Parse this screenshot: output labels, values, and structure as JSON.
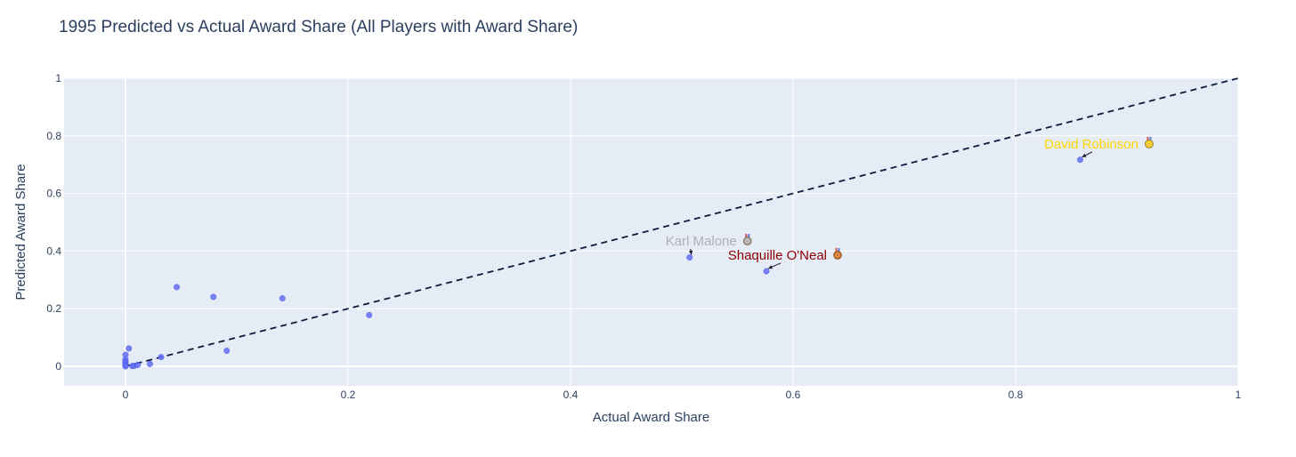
{
  "chart_data": {
    "type": "scatter",
    "title": "1995 Predicted vs Actual Award Share (All Players with Award Share)",
    "xlabel": "Actual Award Share",
    "ylabel": "Predicted Award Share",
    "xlim": [
      -0.056,
      1.0
    ],
    "ylim": [
      -0.065,
      1.0
    ],
    "x_ticks": [
      0,
      0.2,
      0.4,
      0.6,
      0.8,
      1
    ],
    "x_tick_labels": [
      "0",
      "0.2",
      "0.4",
      "0.6",
      "0.8",
      "1"
    ],
    "y_ticks": [
      0,
      0.2,
      0.4,
      0.6,
      0.8,
      1
    ],
    "y_tick_labels": [
      "0",
      "0.2",
      "0.4",
      "0.6",
      "0.8",
      "1"
    ],
    "grid": true,
    "reference_line": {
      "x": [
        0,
        1
      ],
      "y": [
        0,
        1
      ],
      "style": "dashed",
      "color": "#0d1b3e"
    },
    "series": [
      {
        "color": "#636efa",
        "x": [
          0.858,
          0.507,
          0.576,
          0.046,
          0.079,
          0.141,
          0.219,
          0.091,
          0.003,
          0.0,
          0.0,
          0.0,
          0.0,
          0.0,
          0.032,
          0.022,
          0.008,
          0.011,
          0.006,
          0.0
        ],
        "y": [
          0.717,
          0.378,
          0.33,
          0.275,
          0.241,
          0.236,
          0.178,
          0.054,
          0.062,
          0.04,
          0.024,
          0.016,
          0.01,
          0.003,
          0.032,
          0.008,
          0.002,
          0.005,
          0.001,
          0.0
        ]
      }
    ],
    "annotations": [
      {
        "text": "David Robinson",
        "color": "#ffd700",
        "medal": "gold",
        "medal_color": "#f5c518",
        "point_x": 0.858,
        "point_y": 0.717,
        "label_x": 0.92,
        "label_y": 0.772
      },
      {
        "text": "Karl Malone",
        "color": "#b0b0b0",
        "medal": "silver",
        "medal_color": "#a8a8a8",
        "point_x": 0.507,
        "point_y": 0.378,
        "label_x": 0.559,
        "label_y": 0.435
      },
      {
        "text": "Shaquille O'Neal",
        "color": "#8b0000",
        "medal": "bronze",
        "medal_color": "#cd6a1f",
        "point_x": 0.576,
        "point_y": 0.33,
        "label_x": 0.64,
        "label_y": 0.386
      }
    ],
    "colors": {
      "plot_bg": "#e5ecf6",
      "grid": "#ffffff",
      "text": "#2a3f5f"
    }
  }
}
